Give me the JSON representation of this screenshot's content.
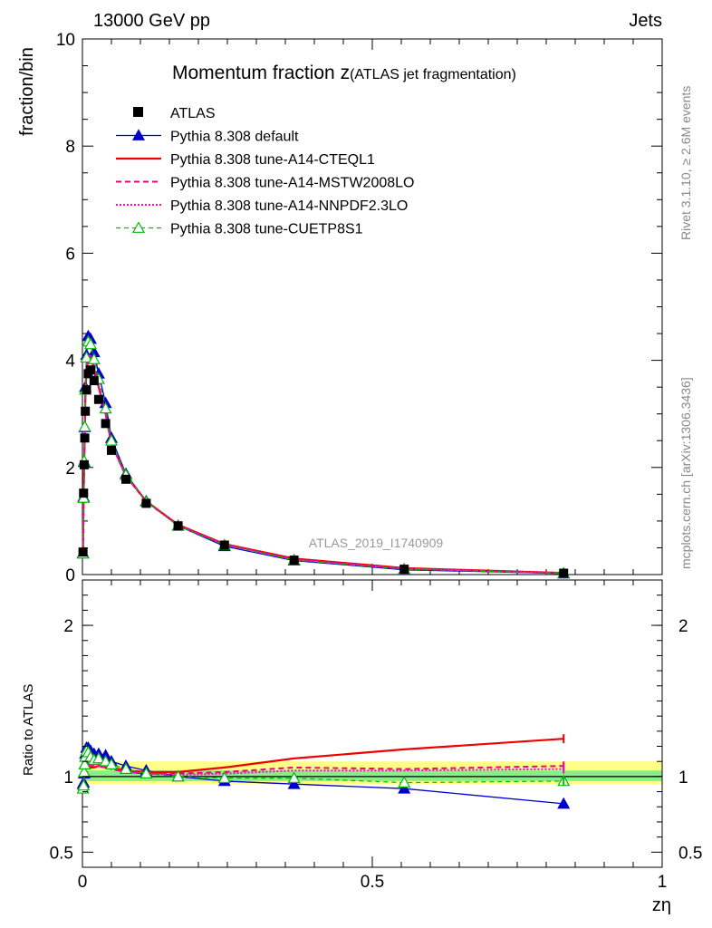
{
  "header": {
    "left": "13000 GeV pp",
    "right": "Jets"
  },
  "side_labels": {
    "rivet": "Rivet 3.1.10, ≥ 2.6M events",
    "mcplots": "mcplots.cern.ch [arXiv:1306.3436]"
  },
  "watermark": "ATLAS_2019_I1740909",
  "colors": {
    "atlas": "#000000",
    "default": "#0000cc",
    "cteql1": "#ee0000",
    "mstw": "#ee0077",
    "nnpdf": "#ff00cc",
    "cuetp": "#00bb00",
    "band_yellow": "#ffff88",
    "band_green": "#88ee88"
  },
  "chart_data": [
    {
      "type": "line",
      "title": "Momentum fraction z",
      "subtitle": "(ATLAS jet fragmentation)",
      "ylabel": "fraction/bin",
      "xlim": [
        0,
        1
      ],
      "ylim": [
        0,
        10
      ],
      "yticks": [
        "0",
        "2",
        "4",
        "6",
        "8",
        "10"
      ],
      "x": [
        0.001,
        0.002,
        0.003,
        0.004,
        0.005,
        0.007,
        0.01,
        0.014,
        0.02,
        0.028,
        0.04,
        0.05,
        0.075,
        0.11,
        0.165,
        0.245,
        0.365,
        0.555,
        0.83
      ],
      "series": [
        {
          "name": "ATLAS",
          "style": "square",
          "values": [
            0.42,
            1.52,
            2.05,
            2.55,
            3.05,
            3.45,
            3.75,
            3.82,
            3.62,
            3.27,
            2.82,
            2.32,
            1.78,
            1.33,
            0.91,
            0.55,
            0.27,
            0.1,
            0.025
          ]
        },
        {
          "name": "Pythia 8.308 default",
          "style": "solid-triangle",
          "values": [
            0.4,
            1.45,
            2.1,
            2.75,
            3.5,
            4.1,
            4.45,
            4.4,
            4.15,
            3.75,
            3.2,
            2.55,
            1.88,
            1.37,
            0.91,
            0.53,
            0.26,
            0.09,
            0.02
          ]
        },
        {
          "name": "Pythia 8.308 tune-A14-CTEQL1",
          "style": "solid",
          "values": [
            0.4,
            1.42,
            2.05,
            2.62,
            3.3,
            3.8,
            4.05,
            4.05,
            3.85,
            3.5,
            3.0,
            2.45,
            1.85,
            1.37,
            0.93,
            0.57,
            0.3,
            0.12,
            0.03
          ]
        },
        {
          "name": "Pythia 8.308 tune-A14-MSTW2008LO",
          "style": "dashed",
          "values": [
            0.4,
            1.42,
            2.06,
            2.64,
            3.34,
            3.86,
            4.1,
            4.08,
            3.88,
            3.52,
            3.0,
            2.44,
            1.84,
            1.36,
            0.92,
            0.56,
            0.28,
            0.11,
            0.026
          ]
        },
        {
          "name": "Pythia 8.308 tune-A14-NNPDF2.3LO",
          "style": "dotted",
          "values": [
            0.4,
            1.42,
            2.06,
            2.64,
            3.34,
            3.86,
            4.1,
            4.08,
            3.88,
            3.52,
            3.0,
            2.44,
            1.84,
            1.36,
            0.92,
            0.56,
            0.28,
            0.11,
            0.026
          ]
        },
        {
          "name": "Pythia 8.308 tune-CUETP8S1",
          "style": "dashed-open-triangle",
          "values": [
            0.39,
            1.43,
            2.12,
            2.76,
            3.45,
            4.05,
            4.35,
            4.3,
            4.02,
            3.65,
            3.1,
            2.5,
            1.86,
            1.36,
            0.91,
            0.55,
            0.27,
            0.1,
            0.025
          ]
        }
      ]
    },
    {
      "type": "line",
      "ylabel": "Ratio to ATLAS",
      "xlabel": "zη",
      "xlim": [
        0,
        1
      ],
      "ylim": [
        0.4,
        2.3
      ],
      "xticks": [
        "0",
        "0.5",
        "1"
      ],
      "yticks_values": [
        0.5,
        1,
        2
      ],
      "yticks": [
        "0.5",
        "1",
        "2"
      ],
      "x": [
        0.001,
        0.002,
        0.003,
        0.004,
        0.005,
        0.007,
        0.01,
        0.014,
        0.02,
        0.028,
        0.04,
        0.05,
        0.075,
        0.11,
        0.165,
        0.245,
        0.365,
        0.555,
        0.83
      ],
      "bands": {
        "yellow": [
          0.95,
          1.1
        ],
        "green": [
          0.97,
          1.04
        ]
      },
      "series": [
        {
          "name": "Pythia 8.308 default",
          "values": [
            0.95,
            0.96,
            1.02,
            1.08,
            1.15,
            1.19,
            1.19,
            1.17,
            1.15,
            1.15,
            1.14,
            1.1,
            1.07,
            1.04,
            1.0,
            0.97,
            0.95,
            0.92,
            0.82
          ]
        },
        {
          "name": "Pythia 8.308 tune-A14-CTEQL1",
          "values": [
            0.95,
            0.94,
            1.0,
            1.03,
            1.08,
            1.1,
            1.08,
            1.06,
            1.06,
            1.07,
            1.06,
            1.06,
            1.04,
            1.03,
            1.03,
            1.06,
            1.12,
            1.18,
            1.25
          ]
        },
        {
          "name": "Pythia 8.308 tune-A14-MSTW2008LO",
          "values": [
            0.95,
            0.94,
            1.01,
            1.04,
            1.09,
            1.12,
            1.09,
            1.07,
            1.07,
            1.07,
            1.06,
            1.05,
            1.03,
            1.02,
            1.02,
            1.03,
            1.06,
            1.05,
            1.07
          ]
        },
        {
          "name": "Pythia 8.308 tune-A14-NNPDF2.3LO",
          "values": [
            0.95,
            0.94,
            1.01,
            1.04,
            1.09,
            1.12,
            1.09,
            1.07,
            1.07,
            1.07,
            1.06,
            1.05,
            1.03,
            1.02,
            1.01,
            1.02,
            1.04,
            1.04,
            1.05
          ]
        },
        {
          "name": "Pythia 8.308 tune-CUETP8S1",
          "values": [
            0.92,
            0.94,
            1.03,
            1.08,
            1.13,
            1.17,
            1.16,
            1.13,
            1.11,
            1.12,
            1.1,
            1.08,
            1.05,
            1.02,
            1.0,
            0.99,
            0.99,
            0.96,
            0.97
          ]
        }
      ]
    }
  ]
}
